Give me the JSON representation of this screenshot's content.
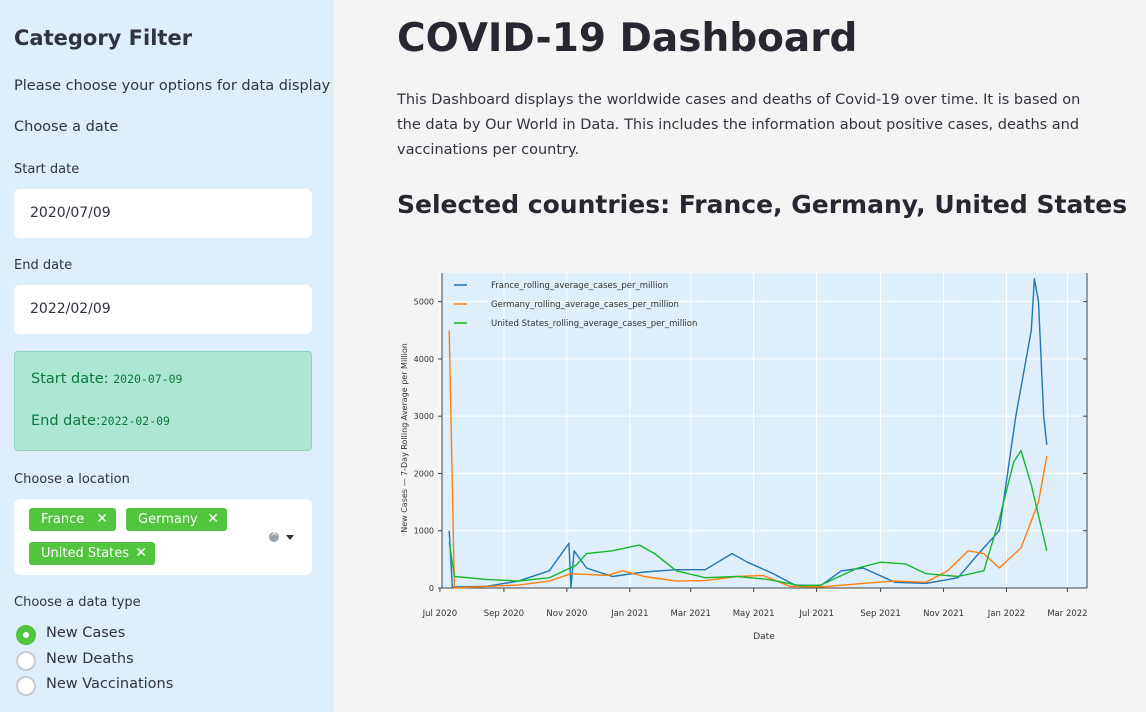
{
  "sidebar": {
    "title": "Category Filter",
    "intro": "Please choose your options for data display",
    "choose_date": "Choose a date",
    "start_label": "Start date",
    "start_value": "2020/07/09",
    "end_label": "End date",
    "end_value": "2022/02/09",
    "summary": {
      "start_prefix": "Start date:",
      "start_code": "2020-07-09",
      "end_prefix": "End date:",
      "end_code": "2022-02-09"
    },
    "location_label": "Choose a location",
    "locations": [
      "France",
      "Germany",
      "United States"
    ],
    "datatype_label": "Choose a data type",
    "datatypes": [
      "New Cases",
      "New Deaths",
      "New Vaccinations"
    ],
    "selected_datatype": "New Cases"
  },
  "main": {
    "title": "COVID-19 Dashboard",
    "description": "This Dashboard displays the worldwide cases and deaths of Covid-19 over time. It is based on the data by Our World in Data. This includes the information about positive cases, deaths and vaccinations per country.",
    "subheader": "Selected countries: France, Germany, United States"
  },
  "colors": {
    "accent": "#50c53d",
    "france": "#1f77b4",
    "germany": "#ff7f0e",
    "us": "#16b829"
  },
  "chart_data": {
    "type": "line",
    "xlabel": "Date",
    "ylabel": "New Cases  —  7-Day Rolling Average per Million",
    "ylim": [
      0,
      5500
    ],
    "yticks": [
      0,
      1000,
      2000,
      3000,
      4000,
      5000
    ],
    "xticks": [
      "Jul 2020",
      "Sep 2020",
      "Nov 2020",
      "Jan 2021",
      "Mar 2021",
      "May 2021",
      "Jul 2021",
      "Sep 2021",
      "Nov 2021",
      "Jan 2022",
      "Mar 2022"
    ],
    "legend_position": "top-left",
    "series": [
      {
        "name": "France_rolling_average_cases_per_million",
        "points": [
          [
            "2020-07-10",
            1000
          ],
          [
            "2020-07-13",
            20
          ],
          [
            "2020-08-15",
            30
          ],
          [
            "2020-09-15",
            120
          ],
          [
            "2020-10-15",
            300
          ],
          [
            "2020-11-03",
            780
          ],
          [
            "2020-11-05",
            0
          ],
          [
            "2020-11-08",
            650
          ],
          [
            "2020-11-20",
            350
          ],
          [
            "2020-12-15",
            200
          ],
          [
            "2021-01-15",
            280
          ],
          [
            "2021-02-15",
            320
          ],
          [
            "2021-03-15",
            320
          ],
          [
            "2021-04-10",
            600
          ],
          [
            "2021-04-25",
            450
          ],
          [
            "2021-05-20",
            250
          ],
          [
            "2021-06-10",
            50
          ],
          [
            "2021-07-05",
            40
          ],
          [
            "2021-07-25",
            300
          ],
          [
            "2021-08-15",
            350
          ],
          [
            "2021-09-15",
            100
          ],
          [
            "2021-10-15",
            80
          ],
          [
            "2021-11-15",
            180
          ],
          [
            "2021-12-05",
            600
          ],
          [
            "2021-12-25",
            1000
          ],
          [
            "2022-01-10",
            3000
          ],
          [
            "2022-01-25",
            4500
          ],
          [
            "2022-01-28",
            5400
          ],
          [
            "2022-02-01",
            5000
          ],
          [
            "2022-02-06",
            3000
          ],
          [
            "2022-02-09",
            2500
          ]
        ]
      },
      {
        "name": "Germany_rolling_average_cases_per_million",
        "points": [
          [
            "2020-07-10",
            4500
          ],
          [
            "2020-07-15",
            0
          ],
          [
            "2020-08-15",
            30
          ],
          [
            "2020-09-15",
            50
          ],
          [
            "2020-10-15",
            120
          ],
          [
            "2020-11-05",
            250
          ],
          [
            "2020-12-10",
            220
          ],
          [
            "2020-12-25",
            300
          ],
          [
            "2021-01-15",
            200
          ],
          [
            "2021-02-15",
            120
          ],
          [
            "2021-03-15",
            130
          ],
          [
            "2021-04-15",
            200
          ],
          [
            "2021-05-10",
            220
          ],
          [
            "2021-06-05",
            30
          ],
          [
            "2021-07-05",
            20
          ],
          [
            "2021-08-15",
            80
          ],
          [
            "2021-09-15",
            120
          ],
          [
            "2021-10-15",
            100
          ],
          [
            "2021-11-05",
            300
          ],
          [
            "2021-11-25",
            650
          ],
          [
            "2021-12-10",
            600
          ],
          [
            "2021-12-25",
            350
          ],
          [
            "2022-01-15",
            700
          ],
          [
            "2022-02-01",
            1500
          ],
          [
            "2022-02-09",
            2300
          ]
        ]
      },
      {
        "name": "United States_rolling_average_cases_per_million",
        "points": [
          [
            "2020-07-10",
            800
          ],
          [
            "2020-07-15",
            200
          ],
          [
            "2020-08-15",
            150
          ],
          [
            "2020-09-15",
            120
          ],
          [
            "2020-10-15",
            180
          ],
          [
            "2020-11-10",
            400
          ],
          [
            "2020-11-20",
            600
          ],
          [
            "2020-12-15",
            650
          ],
          [
            "2021-01-10",
            750
          ],
          [
            "2021-01-25",
            600
          ],
          [
            "2021-02-15",
            300
          ],
          [
            "2021-03-15",
            180
          ],
          [
            "2021-04-15",
            200
          ],
          [
            "2021-05-15",
            150
          ],
          [
            "2021-06-15",
            40
          ],
          [
            "2021-07-05",
            50
          ],
          [
            "2021-08-10",
            350
          ],
          [
            "2021-09-01",
            450
          ],
          [
            "2021-09-25",
            420
          ],
          [
            "2021-10-15",
            250
          ],
          [
            "2021-11-15",
            200
          ],
          [
            "2021-12-10",
            300
          ],
          [
            "2021-12-25",
            1200
          ],
          [
            "2022-01-08",
            2200
          ],
          [
            "2022-01-15",
            2400
          ],
          [
            "2022-01-25",
            1800
          ],
          [
            "2022-02-09",
            650
          ]
        ]
      }
    ]
  }
}
